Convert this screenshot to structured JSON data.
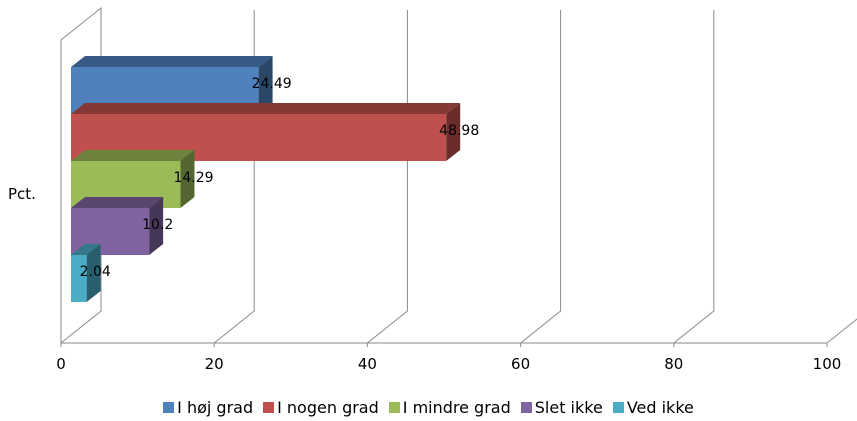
{
  "chart_data": {
    "type": "bar",
    "orientation": "horizontal",
    "style": "3d",
    "category": "Pct.",
    "series": [
      {
        "name": "I høj grad",
        "value": 24.49,
        "label": "24.49",
        "color": "#4F81BD"
      },
      {
        "name": "I nogen grad",
        "value": 48.98,
        "label": "48.98",
        "color": "#C0504D"
      },
      {
        "name": "I mindre grad",
        "value": 14.29,
        "label": "14.29",
        "color": "#9BBB59"
      },
      {
        "name": "Slet ikke",
        "value": 10.2,
        "label": "10.2",
        "color": "#8064A2"
      },
      {
        "name": "Ved ikke",
        "value": 2.04,
        "label": "2.04",
        "color": "#4BACC6"
      }
    ],
    "xlim": [
      0,
      100
    ],
    "xticks": [
      "0",
      "20",
      "40",
      "60",
      "80",
      "100"
    ],
    "grid": true,
    "legend_position": "bottom"
  }
}
